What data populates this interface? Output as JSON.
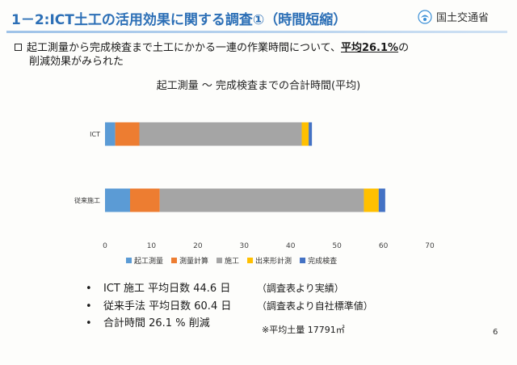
{
  "header": {
    "title": "1－2:ICT土工の活用効果に関する調査①（時間短縮）",
    "org_name": "国土交通省"
  },
  "intro": {
    "text_before": "起工測量から完成検査まで土工にかかる一連の作業時間について、",
    "highlight": "平均26.1%",
    "text_after": "の",
    "line2": "削減効果がみられた"
  },
  "chart_data": {
    "type": "bar",
    "orientation": "horizontal",
    "stacked": true,
    "title": "起工測量 ～ 完成検査までの合計時間(平均)",
    "categories": [
      "ICT",
      "従来施工"
    ],
    "series": [
      {
        "name": "起工測量",
        "color": "#5b9bd5",
        "values": [
          2.2,
          5.4
        ]
      },
      {
        "name": "測量計算",
        "color": "#ed7d31",
        "values": [
          5.2,
          6.4
        ]
      },
      {
        "name": "施工",
        "color": "#a5a5a5",
        "values": [
          35.0,
          44.0
        ]
      },
      {
        "name": "出来形計測",
        "color": "#ffc000",
        "values": [
          1.5,
          3.2
        ]
      },
      {
        "name": "完成検査",
        "color": "#4472c4",
        "values": [
          0.7,
          1.4
        ]
      }
    ],
    "xlim": [
      0,
      70
    ],
    "xticks": [
      "0",
      "10",
      "20",
      "30",
      "40",
      "50",
      "60",
      "70"
    ],
    "grid": false,
    "legend_position": "bottom"
  },
  "bullets": [
    {
      "marker": "•",
      "text": "ICT 施工 平均日数 44.6 日",
      "note": "（調査表より実績）"
    },
    {
      "marker": "•",
      "text": "従来手法 平均日数 60.4 日",
      "note": "（調査表より自社標準値）"
    },
    {
      "marker": "•",
      "text": "合計時間 26.1 % 削減",
      "note": ""
    }
  ],
  "footnote": "※平均土量 17791㎡",
  "page_number": "6"
}
